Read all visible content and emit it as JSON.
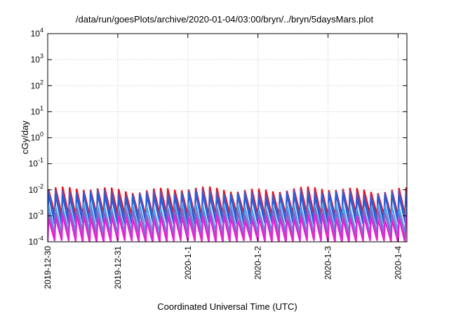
{
  "chart_data": {
    "type": "line",
    "title": "/data/run/goesPlots/archive/2020-01-04/03:00/bryn/../bryn/5daysMars.plot",
    "xlabel": "Coordinated Universal Time (UTC)",
    "ylabel": "cGy/day",
    "y_scale": "log",
    "ylim": [
      0.0001,
      10000
    ],
    "y_ticks": [
      {
        "value": 0.0001,
        "base": "10",
        "exp": "-4"
      },
      {
        "value": 0.001,
        "base": "10",
        "exp": "-3"
      },
      {
        "value": 0.01,
        "base": "10",
        "exp": "-2"
      },
      {
        "value": 0.1,
        "base": "10",
        "exp": "-1"
      },
      {
        "value": 1,
        "base": "10",
        "exp": "0"
      },
      {
        "value": 10,
        "base": "10",
        "exp": "1"
      },
      {
        "value": 100,
        "base": "10",
        "exp": "2"
      },
      {
        "value": 1000,
        "base": "10",
        "exp": "3"
      },
      {
        "value": 10000,
        "base": "10",
        "exp": "4"
      }
    ],
    "xlim": [
      "2019-12-30 00:00",
      "2020-01-04 03:00"
    ],
    "x_ticks": [
      "2019-12-30",
      "2019-12-31",
      "2020-1-1",
      "2020-1-2",
      "2020-1-3",
      "2020-1-4"
    ],
    "grid": true,
    "teeth_per_day": 10,
    "series": [
      {
        "color": "#e8141c",
        "peak": 0.0105,
        "trough": 0.0011
      },
      {
        "color": "#7048a8",
        "peak": 0.0085,
        "trough": 0.0007
      },
      {
        "color": "#2060e0",
        "peak": 0.0062,
        "trough": 0.0005
      },
      {
        "color": "#4aa0e8",
        "peak": 0.0025,
        "trough": 0.00022
      },
      {
        "color": "#9060c0",
        "peak": 0.0015,
        "trough": 0.00014
      },
      {
        "color": "#e820d8",
        "peak": 0.0009,
        "trough": 0.0001
      }
    ]
  }
}
